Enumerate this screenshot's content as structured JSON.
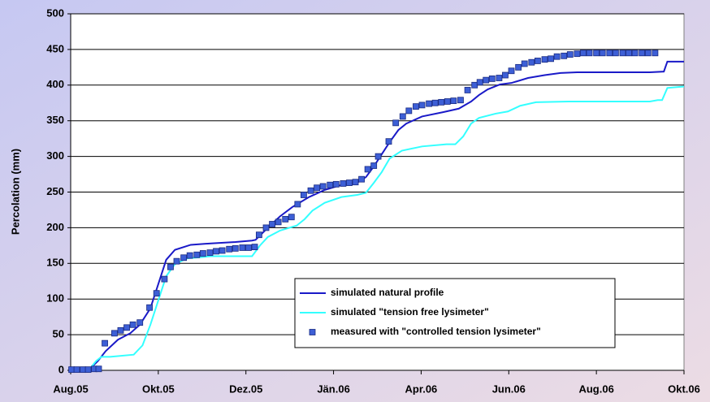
{
  "chart_data": {
    "type": "line",
    "y_label": "Percolation (mm)",
    "xlim": [
      0,
      7
    ],
    "xticks": [
      {
        "value": 0,
        "label": "Aug.05"
      },
      {
        "value": 1,
        "label": "Okt.05"
      },
      {
        "value": 2,
        "label": "Dez.05"
      },
      {
        "value": 3,
        "label": "Jän.06"
      },
      {
        "value": 4,
        "label": "Apr.06"
      },
      {
        "value": 5,
        "label": "Jun.06"
      },
      {
        "value": 6,
        "label": "Aug.06"
      },
      {
        "value": 7,
        "label": "Okt.06"
      }
    ],
    "ylim": [
      0,
      500
    ],
    "yticks": [
      0,
      50,
      100,
      150,
      200,
      250,
      300,
      350,
      400,
      450,
      500
    ],
    "grid": true,
    "series": [
      {
        "name": "simulated natural profile",
        "type": "line",
        "color": "#1a1ac8",
        "x": [
          0,
          0.21,
          0.31,
          0.4,
          0.54,
          0.68,
          0.79,
          0.91,
          1.0,
          1.09,
          1.19,
          1.37,
          1.6,
          1.88,
          2.07,
          2.11,
          2.16,
          2.25,
          2.39,
          2.53,
          2.72,
          2.9,
          3.09,
          3.27,
          3.37,
          3.46,
          3.55,
          3.64,
          3.74,
          3.83,
          4.01,
          4.25,
          4.43,
          4.57,
          4.66,
          4.76,
          4.9,
          5.03,
          5.22,
          5.41,
          5.59,
          5.78,
          6.05,
          6.61,
          6.77,
          6.81,
          7
        ],
        "values": [
          0,
          1,
          13,
          27,
          43,
          52,
          64,
          87,
          121,
          155,
          169,
          176,
          178,
          180,
          182,
          183,
          189,
          200,
          216,
          229,
          243,
          253,
          260,
          263,
          271,
          286,
          303,
          320,
          337,
          346,
          356,
          362,
          367,
          377,
          386,
          394,
          401,
          403,
          410,
          414,
          417,
          418,
          418,
          418,
          419,
          433,
          433
        ]
      },
      {
        "name": "simulated \"tension free lysimeter\"",
        "type": "line",
        "color": "#33ffff",
        "x": [
          0,
          0.21,
          0.29,
          0.35,
          0.45,
          0.72,
          0.82,
          0.91,
          1.0,
          1.09,
          1.19,
          1.33,
          1.6,
          1.97,
          2.07,
          2.16,
          2.25,
          2.39,
          2.58,
          2.67,
          2.76,
          2.9,
          3.09,
          3.27,
          3.37,
          3.46,
          3.55,
          3.64,
          3.78,
          4.01,
          4.29,
          4.39,
          4.48,
          4.57,
          4.66,
          4.85,
          4.99,
          5.13,
          5.31,
          5.68,
          6.61,
          6.7,
          6.75,
          6.81,
          7
        ],
        "values": [
          0,
          1,
          13,
          19,
          19,
          22,
          35,
          64,
          98,
          132,
          149,
          157,
          160,
          160,
          160,
          175,
          187,
          196,
          203,
          212,
          224,
          235,
          243,
          246,
          249,
          263,
          278,
          297,
          308,
          314,
          317,
          317,
          328,
          346,
          354,
          360,
          363,
          371,
          376,
          377,
          377,
          379,
          379,
          396,
          398
        ]
      },
      {
        "name": "measured with \"controlled tension lysimeter\"",
        "type": "scatter",
        "color": "#3d5fd6",
        "x": [
          0.01,
          0.07,
          0.14,
          0.2,
          0.27,
          0.32,
          0.39,
          0.5,
          0.57,
          0.64,
          0.71,
          0.79,
          0.9,
          0.98,
          1.07,
          1.14,
          1.21,
          1.29,
          1.36,
          1.44,
          1.51,
          1.59,
          1.66,
          1.73,
          1.81,
          1.88,
          1.96,
          2.03,
          2.1,
          2.15,
          2.23,
          2.3,
          2.37,
          2.45,
          2.52,
          2.59,
          2.66,
          2.74,
          2.81,
          2.88,
          2.96,
          3.03,
          3.11,
          3.18,
          3.25,
          3.32,
          3.39,
          3.46,
          3.51,
          3.63,
          3.71,
          3.79,
          3.86,
          3.94,
          4.01,
          4.09,
          4.16,
          4.23,
          4.3,
          4.37,
          4.45,
          4.53,
          4.61,
          4.67,
          4.74,
          4.81,
          4.89,
          4.96,
          5.03,
          5.11,
          5.18,
          5.26,
          5.33,
          5.41,
          5.48,
          5.55,
          5.63,
          5.7,
          5.78,
          5.85,
          5.92,
          6.0,
          6.07,
          6.15,
          6.22,
          6.3,
          6.37,
          6.44,
          6.52,
          6.59,
          6.67
        ],
        "values": [
          1,
          1,
          1,
          1,
          2,
          2,
          38,
          52,
          56,
          60,
          64,
          67,
          88,
          108,
          128,
          145,
          153,
          158,
          161,
          162,
          164,
          165,
          167,
          168,
          170,
          171,
          172,
          172,
          173,
          190,
          200,
          205,
          208,
          212,
          215,
          233,
          246,
          252,
          256,
          258,
          260,
          261,
          262,
          263,
          264,
          268,
          282,
          287,
          300,
          321,
          347,
          356,
          364,
          370,
          372,
          374,
          375,
          376,
          377,
          378,
          379,
          393,
          400,
          404,
          407,
          409,
          410,
          414,
          420,
          425,
          430,
          432,
          434,
          436,
          437,
          440,
          441,
          443,
          444,
          445,
          445,
          445,
          445,
          445,
          445,
          445,
          445,
          445,
          445,
          445,
          445
        ]
      }
    ]
  }
}
